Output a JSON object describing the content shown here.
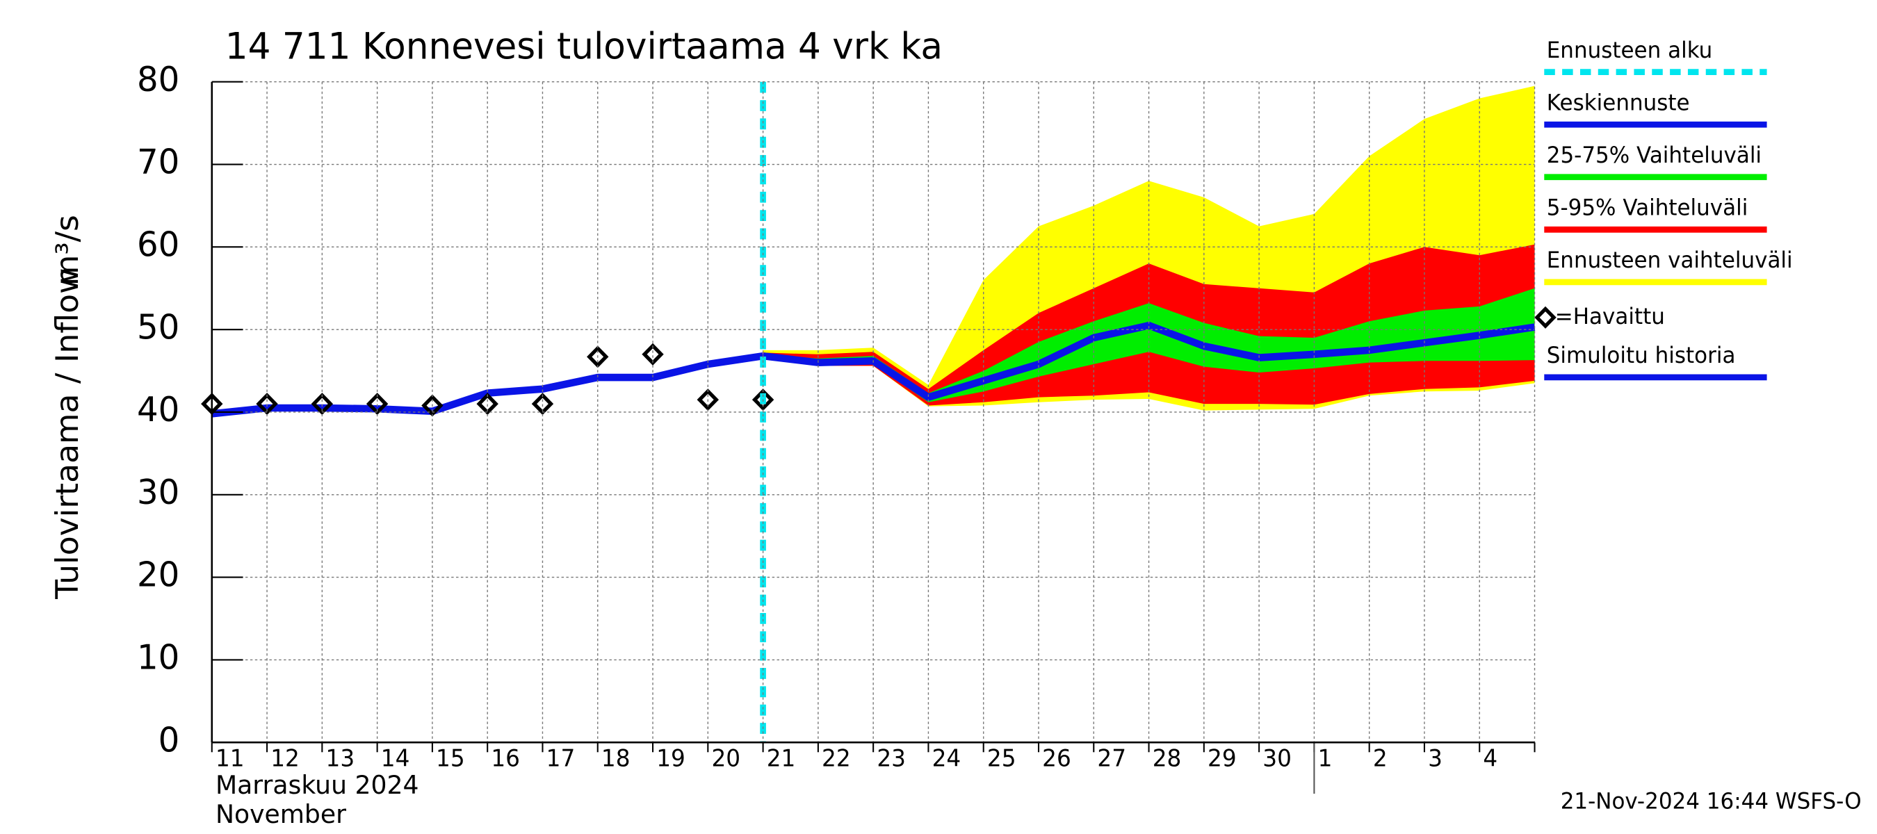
{
  "chart_data": {
    "type": "line",
    "title": "14 711 Konnevesi tulovirtaama 4 vrk ka",
    "y_label": "Tulovirtaama / Inflow",
    "y_unit": "m³/s",
    "x_month_label": "Marraskuu 2024",
    "x_month_label_en": "November",
    "footer": "21-Nov-2024 16:44 WSFS-O",
    "categories": [
      "11",
      "12",
      "13",
      "14",
      "15",
      "16",
      "17",
      "18",
      "19",
      "20",
      "21",
      "22",
      "23",
      "24",
      "25",
      "26",
      "27",
      "28",
      "29",
      "30",
      "1",
      "2",
      "3",
      "4",
      null
    ],
    "ylim": [
      0,
      80
    ],
    "yticks": [
      0,
      10,
      20,
      30,
      40,
      50,
      60,
      70,
      80
    ],
    "grid": true,
    "series": [
      {
        "name": "Ennusteen alku",
        "kind": "vline",
        "color": "#00e5ee",
        "x": "21"
      },
      {
        "name": "Keskiennuste",
        "kind": "line",
        "color": "#0a14e6",
        "values": [
          null,
          null,
          null,
          null,
          null,
          null,
          null,
          null,
          null,
          null,
          46.8,
          46,
          46.2,
          41.8,
          43.8,
          45.8,
          49,
          50.5,
          48,
          46.6,
          47,
          47.5,
          48.4,
          49.3,
          50.3
        ]
      },
      {
        "name": "25-75% Vaihteluväli",
        "kind": "band",
        "color": "#00ee00",
        "low": [
          null,
          null,
          null,
          null,
          null,
          null,
          null,
          null,
          null,
          null,
          46.6,
          45.8,
          45.8,
          41.2,
          42.5,
          44.3,
          45.8,
          47.3,
          45.5,
          44.8,
          45.3,
          46,
          46.2,
          46.2,
          46.3
        ],
        "high": [
          null,
          null,
          null,
          null,
          null,
          null,
          null,
          null,
          null,
          null,
          47,
          46.5,
          46.8,
          42.3,
          45,
          48.5,
          51,
          53.2,
          50.8,
          49.2,
          49,
          51,
          52.3,
          52.8,
          55
        ]
      },
      {
        "name": "5-95% Vaihteluväli",
        "kind": "band",
        "color": "#ff0000",
        "low": [
          null,
          null,
          null,
          null,
          null,
          null,
          null,
          null,
          null,
          null,
          46.5,
          45.6,
          45.6,
          40.8,
          41.2,
          41.8,
          42,
          42.4,
          41,
          41,
          40.9,
          42.2,
          42.8,
          43,
          43.8
        ],
        "high": [
          null,
          null,
          null,
          null,
          null,
          null,
          null,
          null,
          null,
          null,
          47.2,
          47,
          47.3,
          42.8,
          47.5,
          52,
          55,
          58,
          55.5,
          55,
          54.5,
          58,
          60,
          59,
          60.3
        ]
      },
      {
        "name": "Ennusteen vaihteluväli",
        "kind": "band",
        "color": "#ffff00",
        "low": [
          null,
          null,
          null,
          null,
          null,
          null,
          null,
          null,
          null,
          null,
          46.5,
          45.6,
          45.6,
          40.7,
          40.8,
          41.2,
          41.5,
          41.6,
          40.2,
          40.3,
          40.4,
          42,
          42.5,
          42.6,
          43.5
        ],
        "high": [
          null,
          null,
          null,
          null,
          null,
          null,
          null,
          null,
          null,
          null,
          47.5,
          47.5,
          47.8,
          43.3,
          56,
          62.5,
          65,
          68,
          66,
          62.5,
          64,
          71,
          75.5,
          78,
          79.5
        ]
      },
      {
        "name": "=Havaittu",
        "kind": "points",
        "color": "#000000",
        "values": [
          41,
          41,
          41,
          41,
          40.8,
          41,
          41,
          46.7,
          47,
          41.5,
          41.5,
          null,
          null,
          null,
          null,
          null,
          null,
          null,
          null,
          null,
          null,
          null,
          null,
          null,
          null
        ]
      },
      {
        "name": "Simuloitu historia",
        "kind": "line",
        "color": "#0a14e6",
        "values": [
          39.8,
          40.5,
          40.5,
          40.4,
          40.1,
          42.3,
          42.8,
          44.2,
          44.2,
          45.8,
          46.8,
          null,
          null,
          null,
          null,
          null,
          null,
          null,
          null,
          null,
          null,
          null,
          null,
          null,
          null
        ]
      }
    ]
  }
}
